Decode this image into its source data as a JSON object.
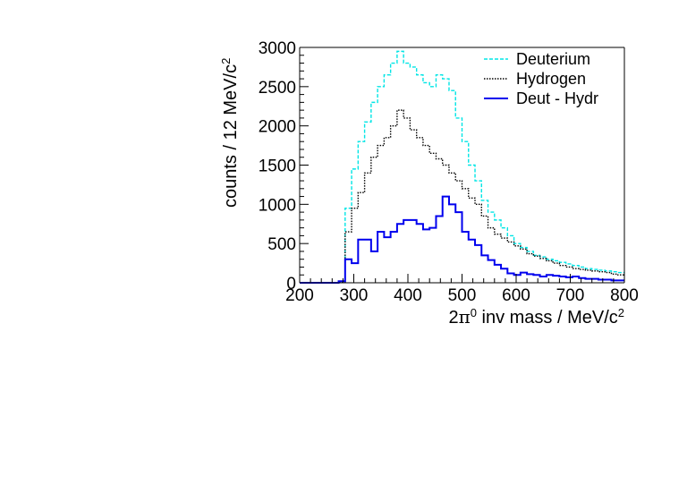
{
  "chart_data": {
    "type": "line",
    "title": "",
    "xlabel": "2π⁰ inv mass / MeV/c²",
    "xlabel_parts": [
      "2",
      "π",
      "0",
      " inv mass / MeV/c",
      "2"
    ],
    "ylabel": "counts / 12 MeV/c²",
    "ylabel_parts": [
      "counts / 12 MeV/c",
      "2"
    ],
    "xlim": [
      200,
      800
    ],
    "ylim": [
      0,
      3000
    ],
    "x_ticks": [
      200,
      300,
      400,
      500,
      600,
      700,
      800
    ],
    "x_tick_labels": [
      "200",
      "300",
      "400",
      "500",
      "600",
      "700",
      "800"
    ],
    "y_ticks": [
      0,
      500,
      1000,
      1500,
      2000,
      2500,
      3000
    ],
    "y_tick_labels": [
      "0",
      "500",
      "1000",
      "1500",
      "2000",
      "2500",
      "3000"
    ],
    "grid": false,
    "legend_position": "top-right",
    "bin_width": 12,
    "bin_start": 200,
    "series": [
      {
        "name": "Deuterium",
        "color": "#00e5e5",
        "dash": "dashed",
        "values": [
          0,
          0,
          0,
          0,
          0,
          0,
          20,
          950,
          1450,
          1800,
          2050,
          2300,
          2500,
          2650,
          2800,
          2950,
          2800,
          2750,
          2650,
          2550,
          2500,
          2650,
          2600,
          2450,
          2100,
          1800,
          1500,
          1300,
          1050,
          900,
          800,
          700,
          600,
          500,
          450,
          400,
          350,
          330,
          300,
          280,
          260,
          240,
          220,
          200,
          180,
          170,
          160,
          150,
          140,
          130
        ]
      },
      {
        "name": "Hydrogen",
        "color": "#000000",
        "dash": "dotted",
        "values": [
          0,
          0,
          0,
          0,
          0,
          0,
          10,
          650,
          950,
          1150,
          1400,
          1600,
          1750,
          1850,
          2000,
          2200,
          2100,
          1950,
          1850,
          1750,
          1650,
          1580,
          1500,
          1400,
          1300,
          1200,
          1080,
          1000,
          850,
          700,
          620,
          570,
          520,
          470,
          430,
          370,
          340,
          310,
          280,
          250,
          220,
          200,
          180,
          170,
          160,
          150,
          140,
          130,
          110,
          100
        ]
      },
      {
        "name": "Deut - Hydr",
        "color": "#0000ee",
        "dash": "solid",
        "values": [
          0,
          0,
          0,
          0,
          0,
          0,
          20,
          300,
          250,
          550,
          550,
          400,
          650,
          580,
          650,
          750,
          800,
          800,
          750,
          680,
          700,
          850,
          1100,
          1000,
          900,
          650,
          550,
          480,
          350,
          290,
          230,
          180,
          120,
          100,
          130,
          110,
          100,
          80,
          100,
          90,
          80,
          70,
          80,
          60,
          50,
          50,
          40,
          40,
          30,
          30
        ]
      }
    ]
  }
}
